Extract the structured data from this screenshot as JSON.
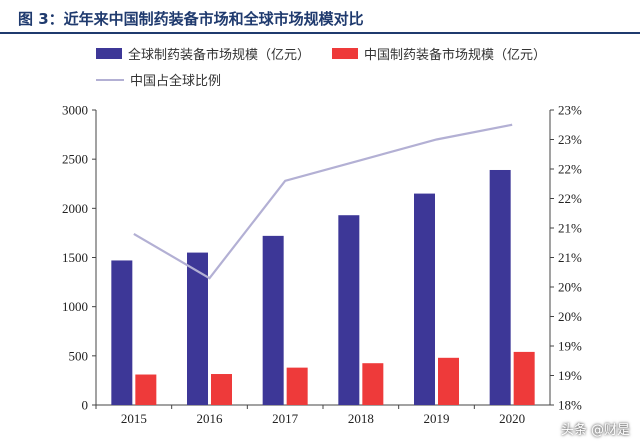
{
  "header": {
    "title": "图 3：近年来中国制药装备市场和全球市场规模对比"
  },
  "legend": {
    "global": "全球制药装备市场规模（亿元）",
    "china": "中国制药装备市场规模（亿元）",
    "ratio": "中国占全球比例"
  },
  "colors": {
    "global": "#3d3797",
    "china": "#ee3a3a",
    "ratio": "#b3b0d4",
    "title": "#1f3a6e"
  },
  "watermark": "头条 @财是",
  "chart_data": {
    "type": "bar",
    "categories": [
      "2015",
      "2016",
      "2017",
      "2018",
      "2019",
      "2020"
    ],
    "series": [
      {
        "name": "全球制药装备市场规模（亿元）",
        "axis": "left",
        "type": "bar",
        "values": [
          1470,
          1550,
          1720,
          1930,
          2150,
          2390
        ]
      },
      {
        "name": "中国制药装备市场规模（亿元）",
        "axis": "left",
        "type": "bar",
        "values": [
          310,
          315,
          380,
          425,
          480,
          540
        ]
      },
      {
        "name": "中国占全球比例",
        "axis": "right",
        "type": "line",
        "values": [
          20.9,
          20.15,
          21.8,
          22.15,
          22.5,
          22.75
        ]
      }
    ],
    "y_left": {
      "range": [
        0,
        3000
      ],
      "ticks": [
        0,
        500,
        1000,
        1500,
        2000,
        2500,
        3000
      ]
    },
    "y_right": {
      "range": [
        18,
        23
      ],
      "tick_values": [
        18,
        18.5,
        19,
        19.5,
        20,
        20.5,
        21,
        21.5,
        22,
        22.5,
        23
      ],
      "tick_labels": [
        "18%",
        "19%",
        "19%",
        "20%",
        "20%",
        "21%",
        "21%",
        "22%",
        "22%",
        "23%",
        "23%"
      ]
    },
    "grid": false,
    "legend_position": "top-left"
  }
}
